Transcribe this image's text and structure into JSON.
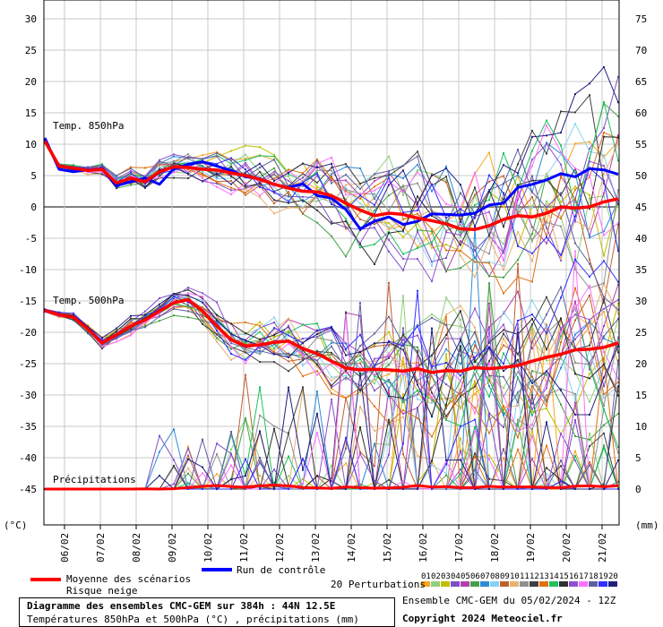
{
  "chart_data": {
    "type": "line",
    "left_axis_unit": "(°C)",
    "right_axis_unit": "(mm)",
    "left_axis_ticks": [
      30,
      25,
      20,
      15,
      10,
      5,
      0,
      -5,
      -10,
      -15,
      -20,
      -25,
      -30,
      -35,
      -40,
      -45
    ],
    "right_axis_ticks": [
      75,
      70,
      65,
      60,
      55,
      50,
      45,
      40,
      35,
      30,
      25,
      20,
      15,
      10,
      5,
      0
    ],
    "ylim_left": [
      -48,
      31
    ],
    "x_tick_labels": [
      "06/02",
      "07/02",
      "08/02",
      "09/02",
      "10/02",
      "11/02",
      "12/02",
      "13/02",
      "14/02",
      "15/02",
      "16/02",
      "17/02",
      "18/02",
      "19/02",
      "20/02",
      "21/02"
    ],
    "section_labels": [
      "Temp. 850hPa",
      "Temp. 500hPa",
      "Précipitations"
    ],
    "mean_850": [
      10.5,
      6.5,
      6.2,
      5.8,
      6.0,
      3.8,
      4.6,
      4.0,
      5.6,
      6.4,
      6.3,
      6.0,
      5.9,
      5.4,
      5.0,
      4.4,
      3.6,
      3.0,
      2.5,
      2.4,
      1.8,
      0.6,
      -0.5,
      -1.4,
      -1.0,
      -1.2,
      -1.8,
      -2.2,
      -2.7,
      -3.5,
      -3.6,
      -3.0,
      -2.0,
      -1.4,
      -1.6,
      -1.0,
      0.0,
      -0.2,
      0.0,
      0.8,
      1.3
    ],
    "control_850": [
      11.0,
      6.0,
      5.6,
      5.9,
      6.0,
      3.4,
      4.0,
      4.6,
      3.6,
      6.1,
      6.8,
      7.2,
      6.5,
      5.8,
      4.8,
      4.5,
      3.6,
      3.1,
      3.7,
      1.8,
      1.4,
      -0.4,
      -3.5,
      -2.3,
      -1.6,
      -2.8,
      -2.3,
      -1.1,
      -1.2,
      -1.3,
      -1.0,
      0.3,
      0.6,
      3.1,
      3.6,
      4.3,
      5.3,
      4.8,
      6.1,
      5.9,
      5.2
    ],
    "mean_500": [
      -16.5,
      -17.2,
      -17.6,
      -19.5,
      -21.7,
      -20.4,
      -19.0,
      -18.0,
      -16.6,
      -15.3,
      -14.8,
      -16.6,
      -19.0,
      -21.2,
      -22.2,
      -22.0,
      -21.6,
      -21.4,
      -22.6,
      -23.4,
      -24.6,
      -25.7,
      -26.0,
      -25.9,
      -26.0,
      -26.2,
      -25.8,
      -26.4,
      -26.1,
      -26.2,
      -25.6,
      -25.8,
      -25.6,
      -25.3,
      -24.6,
      -24.0,
      -23.5,
      -22.8,
      -22.7,
      -22.4,
      -21.7
    ],
    "mean_precip": [
      0.0,
      0.0,
      0.0,
      0.0,
      0.0,
      0.0,
      0.0,
      0.1,
      0.0,
      0.2,
      0.8,
      1.5,
      2.0,
      1.4,
      1.0,
      1.8,
      2.2,
      1.8,
      0.9,
      0.6,
      0.4,
      1.2,
      0.8,
      0.5,
      0.6,
      1.0,
      2.0,
      1.1,
      1.4,
      0.8,
      0.9,
      1.5,
      1.1,
      1.2,
      1.2,
      0.9,
      0.8,
      1.6,
      1.8,
      1.3,
      1.9
    ],
    "series": [
      {
        "name": "Moyenne des scénarios",
        "color": "#ff0000"
      },
      {
        "name": "Run de contrôle",
        "color": "#0000ff"
      },
      {
        "name": "Risque neige",
        "color": ""
      }
    ],
    "perturbation_colors": [
      "#f5a623",
      "#8fd07a",
      "#c0c000",
      "#7a4fc7",
      "#b040b0",
      "#46a046",
      "#2e8bd8",
      "#8ad1f0",
      "#c06030",
      "#e8b070",
      "#909090",
      "#404040",
      "#e07010",
      "#20c060",
      "#303030",
      "#9050d0",
      "#ff70ff",
      "#6060a0",
      "#3030ff",
      "#202080"
    ],
    "perturbation_numbers": [
      "01",
      "02",
      "03",
      "04",
      "05",
      "06",
      "07",
      "08",
      "09",
      "10",
      "11",
      "12",
      "13",
      "14",
      "15",
      "16",
      "17",
      "18",
      "19",
      "20"
    ]
  },
  "legend": {
    "mean_label": "Moyenne des scénarios",
    "snow_label": "Risque neige",
    "control_label": "Run de contrôle",
    "perturbations_label": "20 Perturbations"
  },
  "footer": {
    "title": "Diagramme des ensembles CMC-GEM sur 384h : 44N 12.5E",
    "subtitle": "Températures 850hPa et 500hPa (°C) , précipitations (mm)",
    "run_info": "Ensemble CMC-GEM du 05/02/2024 - 12Z",
    "copyright": "Copyright 2024 Meteociel.fr"
  }
}
